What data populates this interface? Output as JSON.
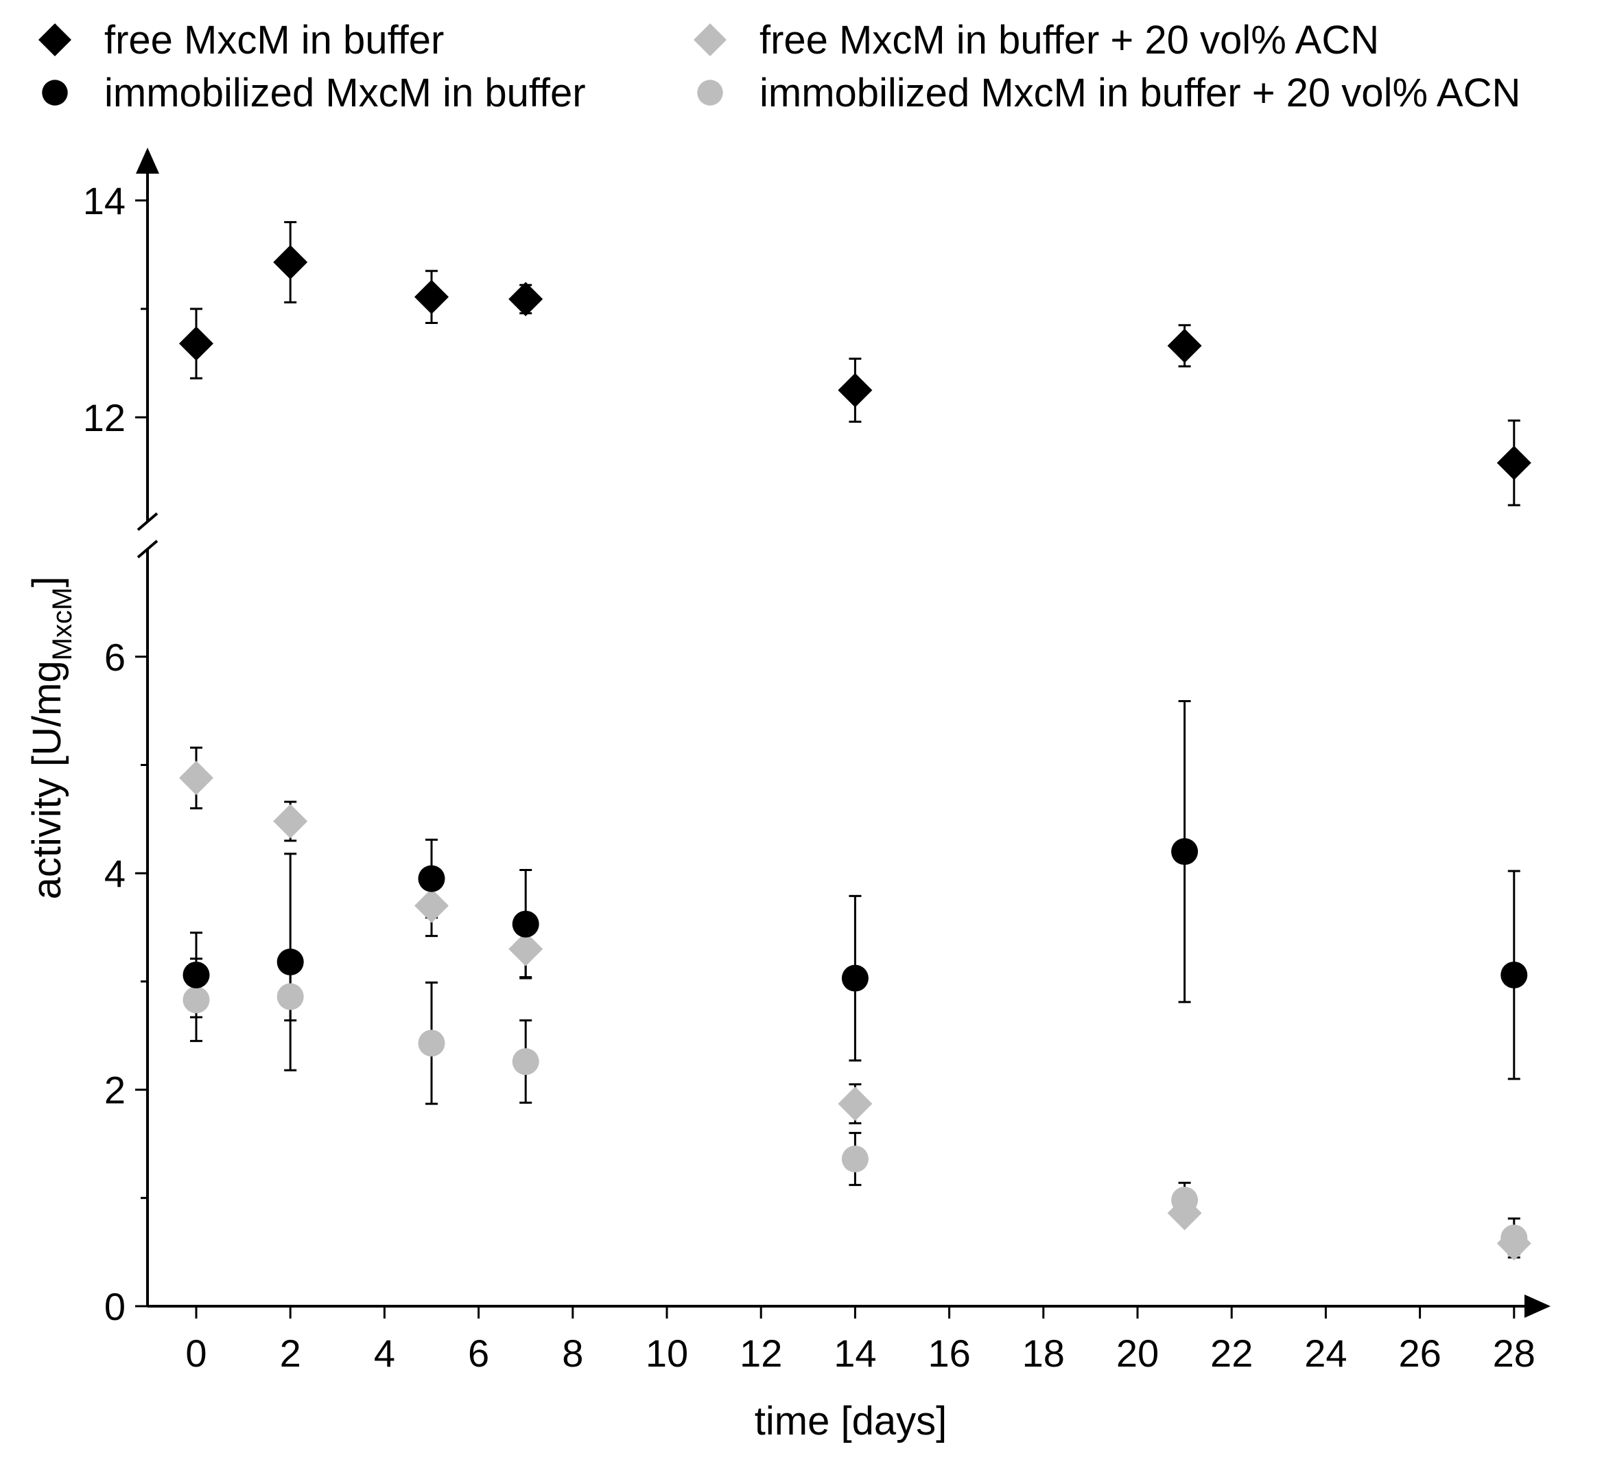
{
  "chart_data": {
    "type": "scatter",
    "xlabel": "time [days]",
    "ylabel": {
      "main": "activity [U/mg",
      "subscript": "MxcM",
      "close": "]"
    },
    "x_ticks": [
      0,
      2,
      4,
      6,
      8,
      10,
      12,
      14,
      16,
      18,
      20,
      22,
      24,
      26,
      28
    ],
    "xlim": [
      -1,
      29
    ],
    "y_axis_broken": true,
    "ylim_lower": [
      0,
      6.9
    ],
    "ylim_upper": [
      11.1,
      14.6
    ],
    "y_ticks_lower": [
      0,
      2,
      4,
      6
    ],
    "y_ticks_upper": [
      12,
      14
    ],
    "legend_position": "top, two columns",
    "colors": {
      "black": "#000000",
      "gray": "#bdbdbd"
    },
    "series": [
      {
        "name": "free MxcM in buffer",
        "marker": "diamond",
        "color": "#000000",
        "points": [
          {
            "x": 0,
            "y": 12.68,
            "err": 0.32
          },
          {
            "x": 2,
            "y": 13.43,
            "err": 0.37
          },
          {
            "x": 5,
            "y": 13.11,
            "err": 0.24
          },
          {
            "x": 7,
            "y": 13.09,
            "err": 0.13
          },
          {
            "x": 14,
            "y": 12.25,
            "err": 0.29
          },
          {
            "x": 21,
            "y": 12.66,
            "err": 0.19
          },
          {
            "x": 28,
            "y": 11.58,
            "err": 0.39
          }
        ]
      },
      {
        "name": "immobilized MxcM in buffer",
        "marker": "circle",
        "color": "#000000",
        "points": [
          {
            "x": 0,
            "y": 3.06,
            "err": 0.39
          },
          {
            "x": 2,
            "y": 3.18,
            "err": 1.0
          },
          {
            "x": 5,
            "y": 3.95,
            "err": 0.36
          },
          {
            "x": 7,
            "y": 3.53,
            "err": 0.5
          },
          {
            "x": 14,
            "y": 3.03,
            "err": 0.76
          },
          {
            "x": 21,
            "y": 4.2,
            "err": 1.39
          },
          {
            "x": 28,
            "y": 3.06,
            "err": 0.96
          }
        ]
      },
      {
        "name": "free MxcM in buffer + 20 vol% ACN",
        "marker": "diamond",
        "color": "#bdbdbd",
        "points": [
          {
            "x": 0,
            "y": 4.88,
            "err": 0.28
          },
          {
            "x": 2,
            "y": 4.48,
            "err": 0.18
          },
          {
            "x": 5,
            "y": 3.7,
            "err": 0.28
          },
          {
            "x": 7,
            "y": 3.3,
            "err": 0.26
          },
          {
            "x": 14,
            "y": 1.87,
            "err": 0.18
          },
          {
            "x": 21,
            "y": 0.86,
            "err": 0.08
          },
          {
            "x": 28,
            "y": 0.58,
            "err": 0.1
          }
        ]
      },
      {
        "name": "immobilized MxcM in buffer + 20 vol% ACN",
        "marker": "circle",
        "color": "#bdbdbd",
        "points": [
          {
            "x": 0,
            "y": 2.83,
            "err": 0.38
          },
          {
            "x": 2,
            "y": 2.86,
            "err": 0.22
          },
          {
            "x": 5,
            "y": 2.43,
            "err": 0.56
          },
          {
            "x": 7,
            "y": 2.26,
            "err": 0.38
          },
          {
            "x": 14,
            "y": 1.36,
            "err": 0.24
          },
          {
            "x": 21,
            "y": 0.98,
            "err": 0.16
          },
          {
            "x": 28,
            "y": 0.63,
            "err": 0.18
          }
        ]
      }
    ]
  }
}
